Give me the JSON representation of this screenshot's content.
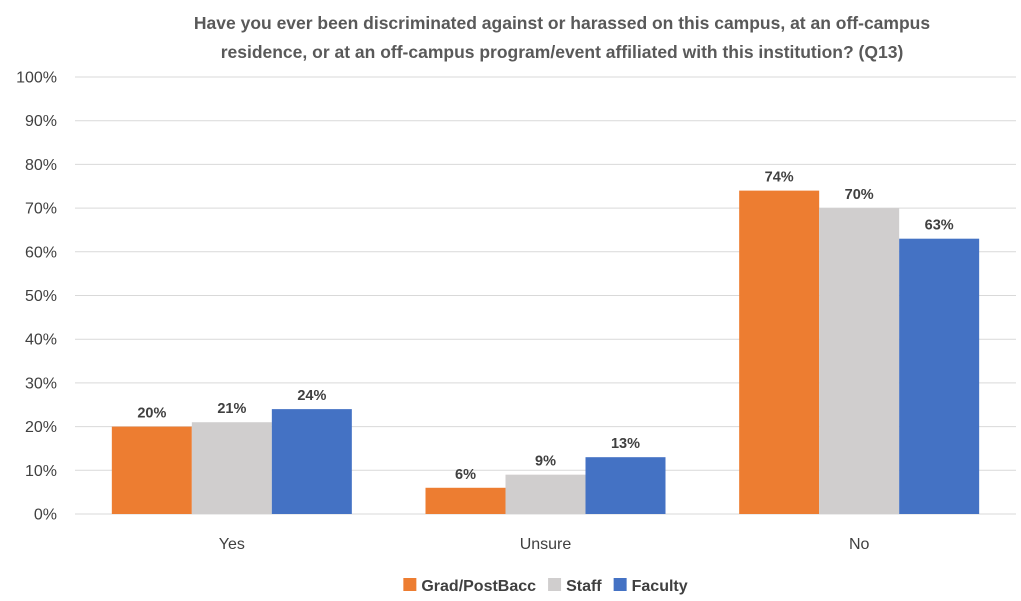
{
  "chart_data": {
    "type": "bar",
    "title": "Have you ever been discriminated against or harassed on this campus, at an off-campus residence, or at an off-campus program/event affiliated with this institution? (Q13)",
    "title_lines": [
      "Have you ever been discriminated against or harassed on this campus, at an off-campus",
      "residence, or at an off-campus program/event affiliated with this institution? (Q13)"
    ],
    "categories": [
      "Yes",
      "Unsure",
      "No"
    ],
    "series": [
      {
        "name": "Grad/PostBacc",
        "color": "#ED7D31",
        "values": [
          20,
          6,
          74
        ],
        "labels": [
          "20%",
          "6%",
          "74%"
        ]
      },
      {
        "name": "Staff",
        "color": "#D0CECE",
        "values": [
          21,
          9,
          70
        ],
        "labels": [
          "21%",
          "9%",
          "70%"
        ]
      },
      {
        "name": "Faculty",
        "color": "#4472C4",
        "values": [
          24,
          13,
          63
        ],
        "labels": [
          "24%",
          "13%",
          "63%"
        ]
      }
    ],
    "y_ticks": [
      "0%",
      "10%",
      "20%",
      "30%",
      "40%",
      "50%",
      "60%",
      "70%",
      "80%",
      "90%",
      "100%"
    ],
    "ylim": [
      0,
      100
    ],
    "grid": true,
    "legend_position": "bottom"
  }
}
